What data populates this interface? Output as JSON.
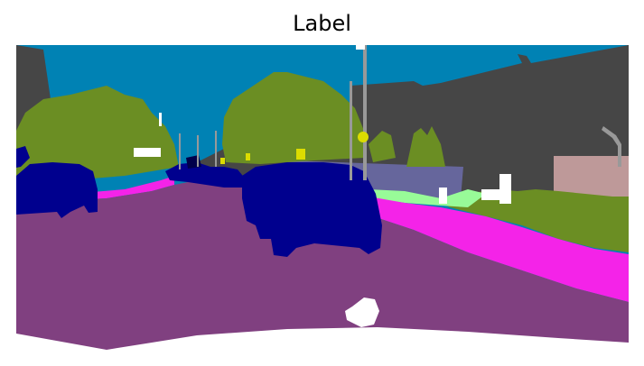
{
  "title": "Label",
  "segmentation_colors": {
    "sky": "#0082B4",
    "building": "#464646",
    "vegetation": "#6B8E23",
    "road": "#804080",
    "sidewalk": "#F423E8",
    "car": "#00008E",
    "wall": "#66669C",
    "terrain": "#98FB98",
    "fence": "#BE9999",
    "pole": "#999999",
    "traffic_sign": "#DCDC00",
    "ego_vehicle": "#FFFFFF"
  }
}
